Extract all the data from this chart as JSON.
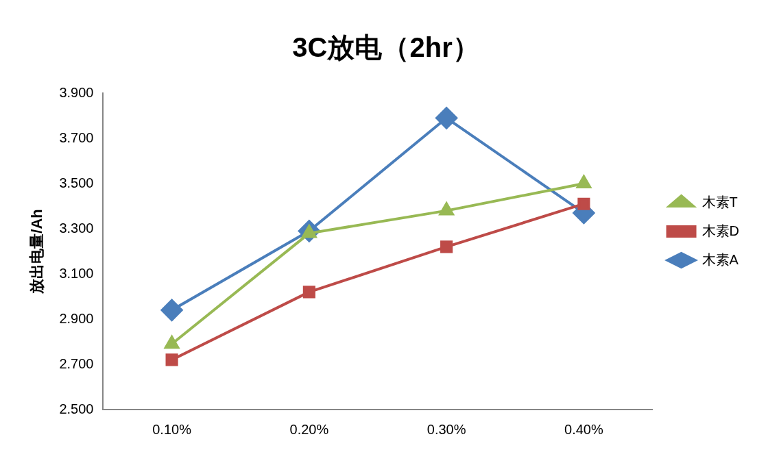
{
  "chart_data": {
    "type": "line",
    "title": "3C放电（2hr）",
    "ylabel": "放出电量/Ah",
    "categories": [
      "0.10%",
      "0.20%",
      "0.30%",
      "0.40%"
    ],
    "series": [
      {
        "name": "木素A",
        "color": "#4a7ebb",
        "marker": "diamond",
        "values": [
          2.94,
          3.29,
          3.79,
          3.37
        ]
      },
      {
        "name": "木素D",
        "color": "#be4b48",
        "marker": "square",
        "values": [
          2.72,
          3.02,
          3.22,
          3.41
        ]
      },
      {
        "name": "木素T",
        "color": "#98b954",
        "marker": "triangle",
        "values": [
          2.79,
          3.28,
          3.38,
          3.5
        ]
      }
    ],
    "ylim": [
      2.5,
      3.9
    ],
    "yticks": [
      {
        "value": 2.5,
        "label": "2.500"
      },
      {
        "value": 2.7,
        "label": "2.700"
      },
      {
        "value": 2.9,
        "label": "2.900"
      },
      {
        "value": 3.1,
        "label": "3.100"
      },
      {
        "value": 3.3,
        "label": "3.300"
      },
      {
        "value": 3.5,
        "label": "3.500"
      },
      {
        "value": 3.7,
        "label": "3.700"
      },
      {
        "value": 3.9,
        "label": "3.900"
      }
    ],
    "grid": false,
    "legend": "right",
    "line_style": "solid"
  }
}
